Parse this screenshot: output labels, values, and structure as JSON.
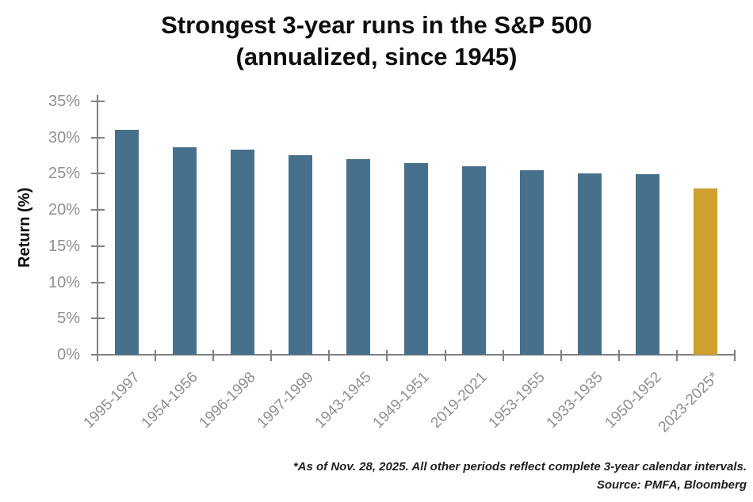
{
  "title": {
    "line1": "Strongest 3-year runs in the S&P 500",
    "line2": "(annualized, since 1945)"
  },
  "footnote": {
    "line1": "*As of Nov. 28, 2025. All other periods reflect complete 3-year calendar intervals.",
    "line2": "Source: PMFA, Bloomberg"
  },
  "chart_data": {
    "type": "bar",
    "title": "Strongest 3-year runs in the S&P 500 (annualized, since 1945)",
    "categories": [
      "1995-1997",
      "1954-1956",
      "1996-1998",
      "1997-1999",
      "1943-1945",
      "1949-1951",
      "2019-2021",
      "1953-1955",
      "1933-1935",
      "1950-1952",
      "2023-2025*"
    ],
    "values": [
      31.1,
      28.7,
      28.3,
      27.6,
      27.0,
      26.5,
      26.0,
      25.5,
      25.0,
      24.9,
      23.0
    ],
    "xlabel": "",
    "ylabel": "Return (%)",
    "ylim": [
      0,
      35
    ],
    "ytick_step": 5,
    "ytick_suffix": "%",
    "grid": false,
    "legend": false,
    "highlight_index": 10,
    "colors": {
      "bar": "#46708c",
      "highlight": "#d09f2e",
      "axis": "#808080",
      "tick_label": "#8f8f8f"
    }
  }
}
